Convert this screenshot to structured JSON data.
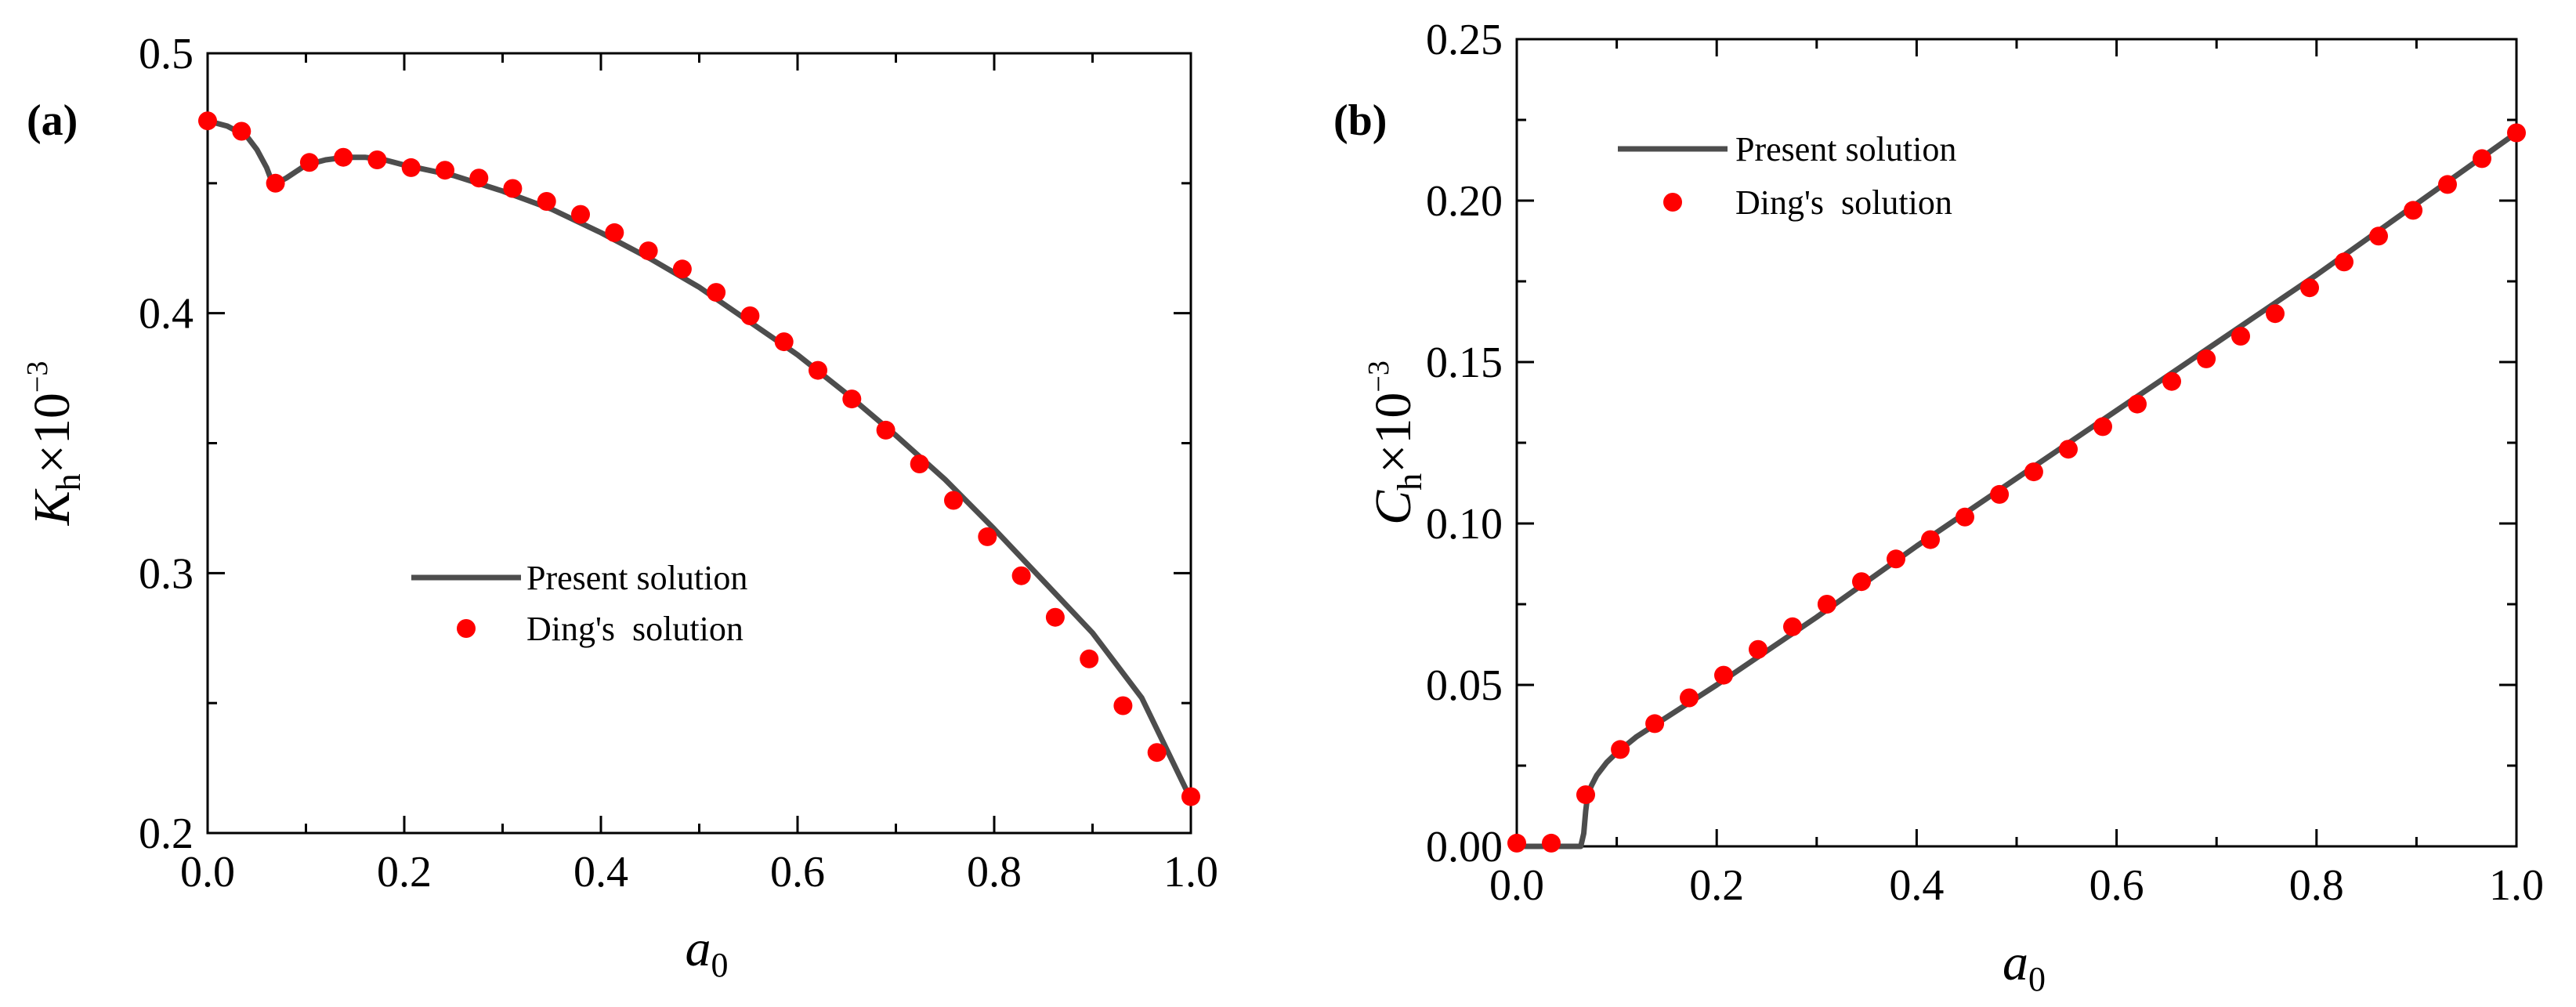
{
  "chart_data": [
    {
      "type": "line",
      "panel_label": "(a)",
      "xlabel": {
        "main": "a",
        "sub": "0"
      },
      "ylabel": {
        "main": "K",
        "sub": "h",
        "rest": "×10",
        "sup": "−3"
      },
      "xlim": [
        0,
        1
      ],
      "ylim": [
        0.2,
        0.5
      ],
      "xticks": [
        "0.0",
        "0.2",
        "0.4",
        "0.6",
        "0.8",
        "1.0"
      ],
      "yticks": [
        "0.2",
        "0.3",
        "0.4",
        "0.5"
      ],
      "legend_position": "center",
      "series": [
        {
          "name": "Present solution",
          "style": "line",
          "color": "#4d4d4d",
          "x": [
            0.0,
            0.02,
            0.04,
            0.05,
            0.06,
            0.065,
            0.07,
            0.08,
            0.1,
            0.12,
            0.14,
            0.16,
            0.18,
            0.2,
            0.25,
            0.3,
            0.35,
            0.4,
            0.45,
            0.5,
            0.55,
            0.6,
            0.65,
            0.7,
            0.75,
            0.8,
            0.85,
            0.9,
            0.95,
            1.0
          ],
          "y": [
            0.474,
            0.472,
            0.468,
            0.463,
            0.456,
            0.451,
            0.45,
            0.452,
            0.457,
            0.459,
            0.46,
            0.46,
            0.459,
            0.457,
            0.453,
            0.447,
            0.44,
            0.431,
            0.421,
            0.41,
            0.397,
            0.384,
            0.369,
            0.353,
            0.336,
            0.317,
            0.297,
            0.277,
            0.252,
            0.213
          ]
        },
        {
          "name": "Ding's  solution",
          "style": "marker",
          "color": "#ff0000",
          "x": [
            0.0,
            0.0345,
            0.069,
            0.1035,
            0.138,
            0.1724,
            0.2069,
            0.2414,
            0.2759,
            0.3103,
            0.3448,
            0.3793,
            0.4138,
            0.4483,
            0.4828,
            0.5172,
            0.5517,
            0.5862,
            0.6207,
            0.6552,
            0.6897,
            0.7241,
            0.7586,
            0.7931,
            0.8276,
            0.8621,
            0.8966,
            0.931,
            0.9655,
            1.0
          ],
          "y": [
            0.474,
            0.47,
            0.45,
            0.458,
            0.46,
            0.459,
            0.456,
            0.455,
            0.452,
            0.448,
            0.443,
            0.438,
            0.431,
            0.424,
            0.417,
            0.408,
            0.399,
            0.389,
            0.378,
            0.367,
            0.355,
            0.342,
            0.328,
            0.314,
            0.299,
            0.283,
            0.267,
            0.249,
            0.231,
            0.214
          ]
        }
      ]
    },
    {
      "type": "line",
      "panel_label": "(b)",
      "xlabel": {
        "main": "a",
        "sub": "0"
      },
      "ylabel": {
        "main": "C",
        "sub": "h",
        "rest": "×10",
        "sup": "−3"
      },
      "xlim": [
        0,
        1
      ],
      "ylim": [
        0,
        0.25
      ],
      "xticks": [
        "0.0",
        "0.2",
        "0.4",
        "0.6",
        "0.8",
        "1.0"
      ],
      "yticks": [
        "0.00",
        "0.05",
        "0.10",
        "0.15",
        "0.20",
        "0.25"
      ],
      "legend_position": "top-left",
      "series": [
        {
          "name": "Present solution",
          "style": "line",
          "color": "#4d4d4d",
          "x": [
            0.0,
            0.064,
            0.067,
            0.069,
            0.071,
            0.075,
            0.08,
            0.09,
            0.1,
            0.12,
            0.15,
            0.2,
            0.3,
            0.4,
            0.5,
            0.6,
            0.7,
            0.8,
            0.9,
            1.0
          ],
          "y": [
            0.0,
            0.0,
            0.004,
            0.011,
            0.016,
            0.019,
            0.022,
            0.026,
            0.029,
            0.034,
            0.04,
            0.05,
            0.071,
            0.093,
            0.114,
            0.135,
            0.156,
            0.177,
            0.199,
            0.221
          ]
        },
        {
          "name": "Ding's  solution",
          "style": "marker",
          "color": "#ff0000",
          "x": [
            0.0,
            0.0345,
            0.069,
            0.1035,
            0.138,
            0.1724,
            0.2069,
            0.2414,
            0.2759,
            0.3103,
            0.3448,
            0.3793,
            0.4138,
            0.4483,
            0.4828,
            0.5172,
            0.5517,
            0.5862,
            0.6207,
            0.6552,
            0.6897,
            0.7241,
            0.7586,
            0.7931,
            0.8276,
            0.8621,
            0.8966,
            0.931,
            0.9655,
            1.0
          ],
          "y": [
            0.001,
            0.001,
            0.016,
            0.03,
            0.038,
            0.046,
            0.053,
            0.061,
            0.068,
            0.075,
            0.082,
            0.089,
            0.095,
            0.102,
            0.109,
            0.116,
            0.123,
            0.13,
            0.137,
            0.144,
            0.151,
            0.158,
            0.165,
            0.173,
            0.181,
            0.189,
            0.197,
            0.205,
            0.213,
            0.221
          ]
        }
      ]
    }
  ]
}
